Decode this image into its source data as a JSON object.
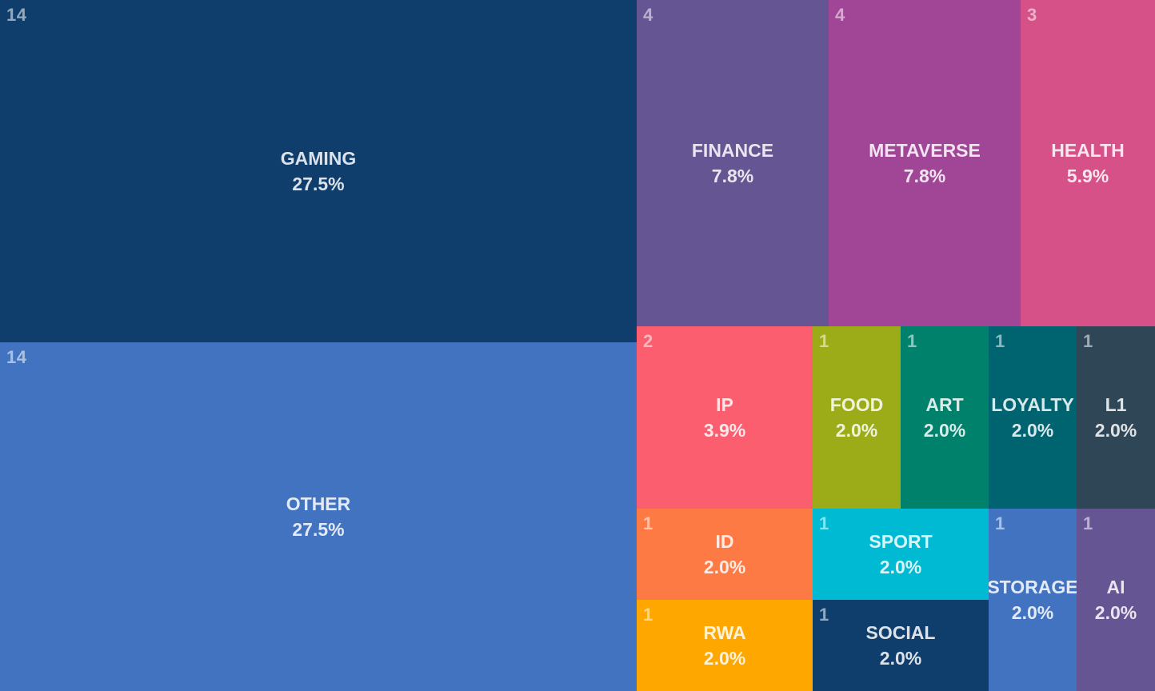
{
  "chart_data": {
    "type": "treemap",
    "total": 51,
    "items": [
      {
        "name": "GAMING",
        "count": 14,
        "percent": "27.5%",
        "color": "#0f3e6d"
      },
      {
        "name": "OTHER",
        "count": 14,
        "percent": "27.5%",
        "color": "#4273c1"
      },
      {
        "name": "FINANCE",
        "count": 4,
        "percent": "7.8%",
        "color": "#655592"
      },
      {
        "name": "METAVERSE",
        "count": 4,
        "percent": "7.8%",
        "color": "#a14596"
      },
      {
        "name": "HEALTH",
        "count": 3,
        "percent": "5.9%",
        "color": "#d55188"
      },
      {
        "name": "IP",
        "count": 2,
        "percent": "3.9%",
        "color": "#fb5e6e"
      },
      {
        "name": "FOOD",
        "count": 1,
        "percent": "2.0%",
        "color": "#9cac19"
      },
      {
        "name": "ART",
        "count": 1,
        "percent": "2.0%",
        "color": "#00816b"
      },
      {
        "name": "LOYALTY",
        "count": 1,
        "percent": "2.0%",
        "color": "#006370"
      },
      {
        "name": "L1",
        "count": 1,
        "percent": "2.0%",
        "color": "#2f4656"
      },
      {
        "name": "ID",
        "count": 1,
        "percent": "2.0%",
        "color": "#fe7a45"
      },
      {
        "name": "SPORT",
        "count": 1,
        "percent": "2.0%",
        "color": "#00bad3"
      },
      {
        "name": "STORAGE",
        "count": 1,
        "percent": "2.0%",
        "color": "#4273c1"
      },
      {
        "name": "AI",
        "count": 1,
        "percent": "2.0%",
        "color": "#655592"
      },
      {
        "name": "RWA",
        "count": 1,
        "percent": "2.0%",
        "color": "#fea701"
      },
      {
        "name": "SOCIAL",
        "count": 1,
        "percent": "2.0%",
        "color": "#0f3e6d"
      }
    ]
  }
}
